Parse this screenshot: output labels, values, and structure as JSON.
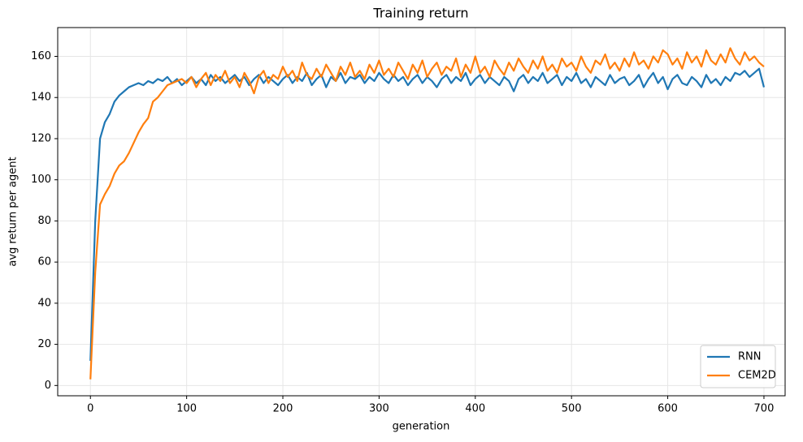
{
  "chart_data": {
    "type": "line",
    "title": "Training return",
    "x_label": "generation",
    "y_label": "avg return per agent",
    "x": [
      0,
      5,
      10,
      15,
      20,
      25,
      30,
      35,
      40,
      45,
      50,
      55,
      60,
      65,
      70,
      75,
      80,
      85,
      90,
      95,
      100,
      105,
      110,
      115,
      120,
      125,
      130,
      135,
      140,
      145,
      150,
      155,
      160,
      165,
      170,
      175,
      180,
      185,
      190,
      195,
      200,
      205,
      210,
      215,
      220,
      225,
      230,
      235,
      240,
      245,
      250,
      255,
      260,
      265,
      270,
      275,
      280,
      285,
      290,
      295,
      300,
      305,
      310,
      315,
      320,
      325,
      330,
      335,
      340,
      345,
      350,
      355,
      360,
      365,
      370,
      375,
      380,
      385,
      390,
      395,
      400,
      405,
      410,
      415,
      420,
      425,
      430,
      435,
      440,
      445,
      450,
      455,
      460,
      465,
      470,
      475,
      480,
      485,
      490,
      495,
      500,
      505,
      510,
      515,
      520,
      525,
      530,
      535,
      540,
      545,
      550,
      555,
      560,
      565,
      570,
      575,
      580,
      585,
      590,
      595,
      600,
      605,
      610,
      615,
      620,
      625,
      630,
      635,
      640,
      645,
      650,
      655,
      660,
      665,
      670,
      675,
      680,
      685,
      690,
      695,
      700
    ],
    "series": [
      {
        "name": "RNN",
        "color": "#1f77b4",
        "values": [
          12,
          80,
          120,
          128,
          132,
          138,
          141,
          143,
          145,
          146,
          147,
          146,
          148,
          147,
          149,
          148,
          150,
          147,
          149,
          146,
          148,
          150,
          147,
          149,
          146,
          151,
          148,
          150,
          147,
          149,
          151,
          148,
          150,
          146,
          149,
          151,
          147,
          150,
          148,
          146,
          149,
          151,
          147,
          150,
          148,
          152,
          146,
          149,
          151,
          145,
          150,
          148,
          152,
          147,
          150,
          149,
          151,
          147,
          150,
          148,
          152,
          149,
          147,
          151,
          148,
          150,
          146,
          149,
          151,
          147,
          150,
          148,
          145,
          149,
          151,
          147,
          150,
          148,
          152,
          146,
          149,
          151,
          147,
          150,
          148,
          146,
          150,
          148,
          143,
          149,
          151,
          147,
          150,
          148,
          152,
          147,
          149,
          151,
          146,
          150,
          148,
          152,
          147,
          149,
          145,
          150,
          148,
          146,
          151,
          147,
          149,
          150,
          146,
          148,
          151,
          145,
          149,
          152,
          147,
          150,
          144,
          149,
          151,
          147,
          146,
          150,
          148,
          145,
          151,
          147,
          149,
          146,
          150,
          148,
          152,
          151,
          153,
          150,
          152,
          154,
          145
        ]
      },
      {
        "name": "CEM2D",
        "color": "#ff7f0e",
        "values": [
          3,
          55,
          88,
          93,
          97,
          103,
          107,
          109,
          113,
          118,
          123,
          127,
          130,
          138,
          140,
          143,
          146,
          147,
          148,
          149,
          147,
          150,
          145,
          149,
          152,
          146,
          151,
          148,
          153,
          147,
          150,
          145,
          152,
          148,
          142,
          150,
          153,
          147,
          151,
          149,
          155,
          150,
          153,
          148,
          157,
          151,
          149,
          154,
          150,
          156,
          152,
          148,
          155,
          151,
          157,
          150,
          153,
          149,
          156,
          152,
          158,
          151,
          154,
          150,
          157,
          153,
          149,
          156,
          152,
          158,
          150,
          154,
          157,
          151,
          155,
          153,
          159,
          150,
          156,
          152,
          160,
          152,
          155,
          150,
          158,
          154,
          151,
          157,
          153,
          159,
          155,
          152,
          158,
          154,
          160,
          153,
          156,
          152,
          159,
          155,
          157,
          153,
          160,
          155,
          152,
          158,
          156,
          161,
          154,
          157,
          153,
          159,
          155,
          162,
          156,
          158,
          154,
          160,
          157,
          163,
          161,
          156,
          159,
          154,
          162,
          157,
          160,
          155,
          163,
          158,
          156,
          161,
          157,
          164,
          159,
          156,
          162,
          158,
          160,
          157,
          155
        ]
      }
    ],
    "xlim": [
      -34,
      722
    ],
    "ylim": [
      -5,
      174
    ],
    "xticks": [
      0,
      100,
      200,
      300,
      400,
      500,
      600,
      700
    ],
    "yticks": [
      0,
      20,
      40,
      60,
      80,
      100,
      120,
      140,
      160
    ],
    "grid": true,
    "legend": "lower right"
  }
}
